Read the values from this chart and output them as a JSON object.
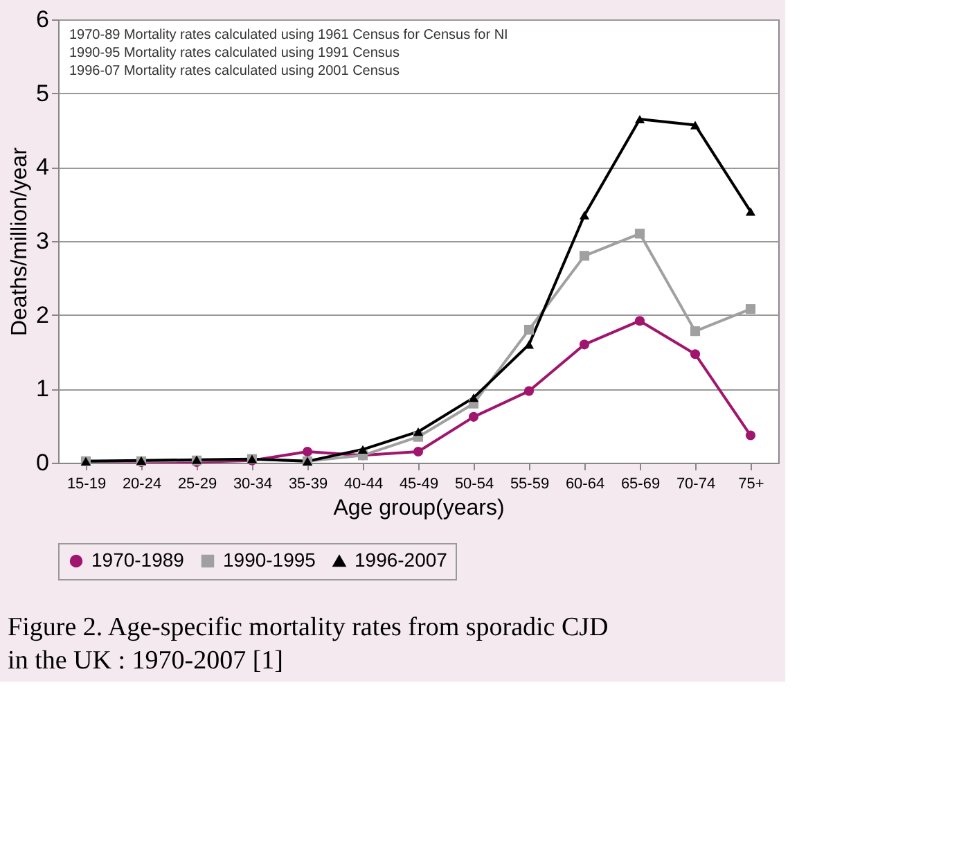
{
  "chart_data": {
    "type": "line",
    "title": "Figure 2. Age-specific mortality rates from sporadic CJD in the UK : 1970-2007 [1]",
    "xlabel": "Age group(years)",
    "ylabel": "Deaths/million/year",
    "annotations": [
      "1970-89 Mortality rates calculated using 1961 Census for Census for NI",
      "1990-95 Mortality rates calculated using 1991 Census",
      "1996-07 Mortality rates calculated using 2001 Census"
    ],
    "categories": [
      "15-19",
      "20-24",
      "25-29",
      "30-34",
      "35-39",
      "40-44",
      "45-49",
      "50-54",
      "55-59",
      "60-64",
      "65-69",
      "70-74",
      "75+"
    ],
    "series": [
      {
        "name": "1970-1989",
        "color": "#a0156e",
        "marker": "circle",
        "values": [
          0.02,
          0.01,
          0.01,
          0.03,
          0.15,
          0.1,
          0.15,
          0.62,
          0.97,
          1.6,
          1.92,
          1.47,
          0.37
        ]
      },
      {
        "name": "1990-1995",
        "color": "#a0a0a0",
        "marker": "square",
        "values": [
          0.02,
          0.02,
          0.03,
          0.05,
          0.02,
          0.1,
          0.35,
          0.8,
          1.8,
          2.8,
          3.1,
          1.78,
          2.08
        ]
      },
      {
        "name": "1996-2007",
        "color": "#000000",
        "marker": "triangle",
        "values": [
          0.02,
          0.03,
          0.04,
          0.05,
          0.02,
          0.18,
          0.42,
          0.88,
          1.6,
          3.35,
          4.65,
          4.57,
          3.4
        ]
      }
    ],
    "ylim": [
      0,
      6
    ],
    "yticks": [
      0,
      1,
      2,
      3,
      4,
      5,
      6
    ],
    "grid": "y",
    "legend": "bottom",
    "line_style": "solid"
  }
}
